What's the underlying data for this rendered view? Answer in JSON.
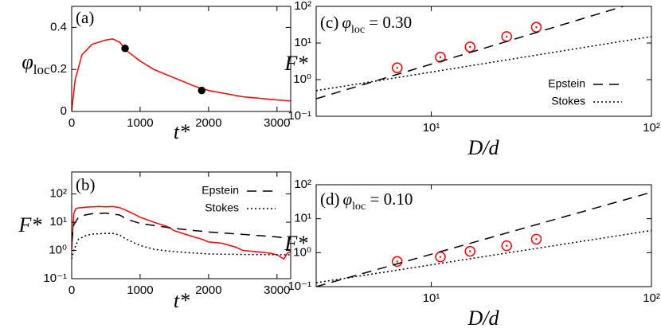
{
  "chart_data": [
    {
      "type": "line",
      "panel_label": "(a)",
      "xlabel": "t*",
      "ylabel": "φ",
      "ylabel_sub": "loc",
      "xlim": [
        0,
        3200
      ],
      "xticks": [
        0,
        1000,
        2000,
        3000
      ],
      "ylim": [
        0,
        0.5
      ],
      "yticks": [
        0,
        0.2,
        0.4
      ],
      "series": [
        {
          "color": "#ff0000",
          "style": "solid",
          "x": [
            0,
            50,
            150,
            300,
            500,
            600,
            700,
            800,
            1000,
            1200,
            1500,
            1800,
            2000,
            2500,
            3000,
            3200
          ],
          "values": [
            0,
            0.15,
            0.27,
            0.32,
            0.34,
            0.345,
            0.33,
            0.29,
            0.24,
            0.2,
            0.16,
            0.12,
            0.1,
            0.07,
            0.055,
            0.05
          ]
        },
        {
          "color": "#000000",
          "style": "dots",
          "x": [
            780,
            1900
          ],
          "values": [
            0.3,
            0.1
          ]
        }
      ]
    },
    {
      "type": "line",
      "panel_label": "(b)",
      "xlabel": "t*",
      "ylabel": "F*",
      "ylog": true,
      "legend": "top-right",
      "xlim": [
        0,
        3200
      ],
      "xticks": [
        0,
        1000,
        2000,
        3000
      ],
      "ylim": [
        0.1,
        600
      ],
      "yticks": [
        {
          "value": 0.1,
          "label": "10⁻¹"
        },
        {
          "value": 1,
          "label": "10⁰"
        },
        {
          "value": 10,
          "label": "10¹"
        },
        {
          "value": 100,
          "label": "10²"
        }
      ],
      "series": [
        {
          "color": "#ff0000",
          "style": "solid",
          "x": [
            0,
            30,
            60,
            100,
            200,
            300,
            400,
            500,
            600,
            700,
            800,
            900,
            1000,
            1200,
            1400,
            1500,
            1700,
            1900,
            2000,
            2200,
            2400,
            2500,
            2700,
            2900,
            3000,
            3100,
            3150,
            3200
          ],
          "values": [
            1,
            20,
            30,
            32,
            34,
            35,
            36,
            35,
            36,
            33,
            26,
            20,
            15,
            10,
            7,
            5,
            3.5,
            2.5,
            2,
            1.8,
            1.3,
            1,
            0.9,
            0.8,
            0.7,
            0.5,
            0.8,
            0.9
          ]
        },
        {
          "name": "Epstein",
          "color": "#000000",
          "style": "dashed",
          "x": [
            0,
            30,
            100,
            200,
            300,
            500,
            700,
            800,
            1000,
            1500,
            2000,
            2500,
            3000,
            3200
          ],
          "values": [
            2,
            8,
            15,
            18,
            20,
            21,
            18,
            13,
            9,
            6,
            4.5,
            3.7,
            3,
            2.6
          ]
        },
        {
          "name": "Stokes",
          "color": "#000000",
          "style": "dotted",
          "x": [
            0,
            30,
            100,
            200,
            300,
            500,
            600,
            700,
            800,
            1000,
            1200,
            1500,
            2000,
            2500,
            3200
          ],
          "values": [
            0.5,
            1,
            2.5,
            3.3,
            3.8,
            4,
            4,
            3.5,
            2.5,
            1.5,
            1.1,
            0.9,
            0.75,
            0.72,
            0.7
          ]
        }
      ]
    },
    {
      "type": "line",
      "panel_label": "(c)",
      "panel_sym": "φ",
      "panel_sub": "loc",
      "panel_rest": " = 0.30",
      "xlabel": "D/d",
      "ylabel": "F*",
      "xlog": true,
      "ylog": true,
      "legend": "bottom-right",
      "xlim": [
        3,
        100
      ],
      "xticks": [
        {
          "value": 10,
          "label": "10¹"
        },
        {
          "value": 100,
          "label": "10²"
        }
      ],
      "ylim": [
        0.1,
        100
      ],
      "yticks": [
        {
          "value": 0.1,
          "label": "10⁻¹"
        },
        {
          "value": 1,
          "label": "10⁰"
        },
        {
          "value": 10,
          "label": "10¹"
        },
        {
          "value": 100,
          "label": "10²"
        }
      ],
      "series": [
        {
          "color": "#ff0000",
          "style": "circles",
          "x": [
            7,
            11,
            15,
            22,
            30
          ],
          "values": [
            2.1,
            4.1,
            7.8,
            15,
            27
          ]
        },
        {
          "name": "Epstein",
          "color": "#000000",
          "style": "dashed",
          "x": [
            3,
            100
          ],
          "values": [
            0.3,
            170
          ]
        },
        {
          "name": "Stokes",
          "color": "#000000",
          "style": "dotted",
          "x": [
            3,
            100
          ],
          "values": [
            0.5,
            15
          ]
        }
      ]
    },
    {
      "type": "line",
      "panel_label": "(d)",
      "panel_sym": "φ",
      "panel_sub": "loc",
      "panel_rest": " = 0.10",
      "xlabel": "D/d",
      "ylabel": "F*",
      "xlog": true,
      "ylog": true,
      "xlim": [
        3,
        100
      ],
      "xticks": [
        {
          "value": 10,
          "label": "10¹"
        },
        {
          "value": 100,
          "label": "10²"
        }
      ],
      "ylim": [
        0.1,
        100
      ],
      "yticks": [
        {
          "value": 0.1,
          "label": "10⁻¹"
        },
        {
          "value": 1,
          "label": "10⁰"
        },
        {
          "value": 10,
          "label": "10¹"
        },
        {
          "value": 100,
          "label": "10²"
        }
      ],
      "series": [
        {
          "color": "#ff0000",
          "style": "circles",
          "x": [
            7,
            11,
            15,
            22,
            30
          ],
          "values": [
            0.55,
            0.75,
            1.1,
            1.6,
            2.5
          ]
        },
        {
          "color": "#000000",
          "style": "dashed",
          "x": [
            3,
            100
          ],
          "values": [
            0.1,
            60
          ]
        },
        {
          "color": "#000000",
          "style": "dotted",
          "x": [
            3,
            100
          ],
          "values": [
            0.13,
            4.5
          ]
        }
      ]
    }
  ]
}
